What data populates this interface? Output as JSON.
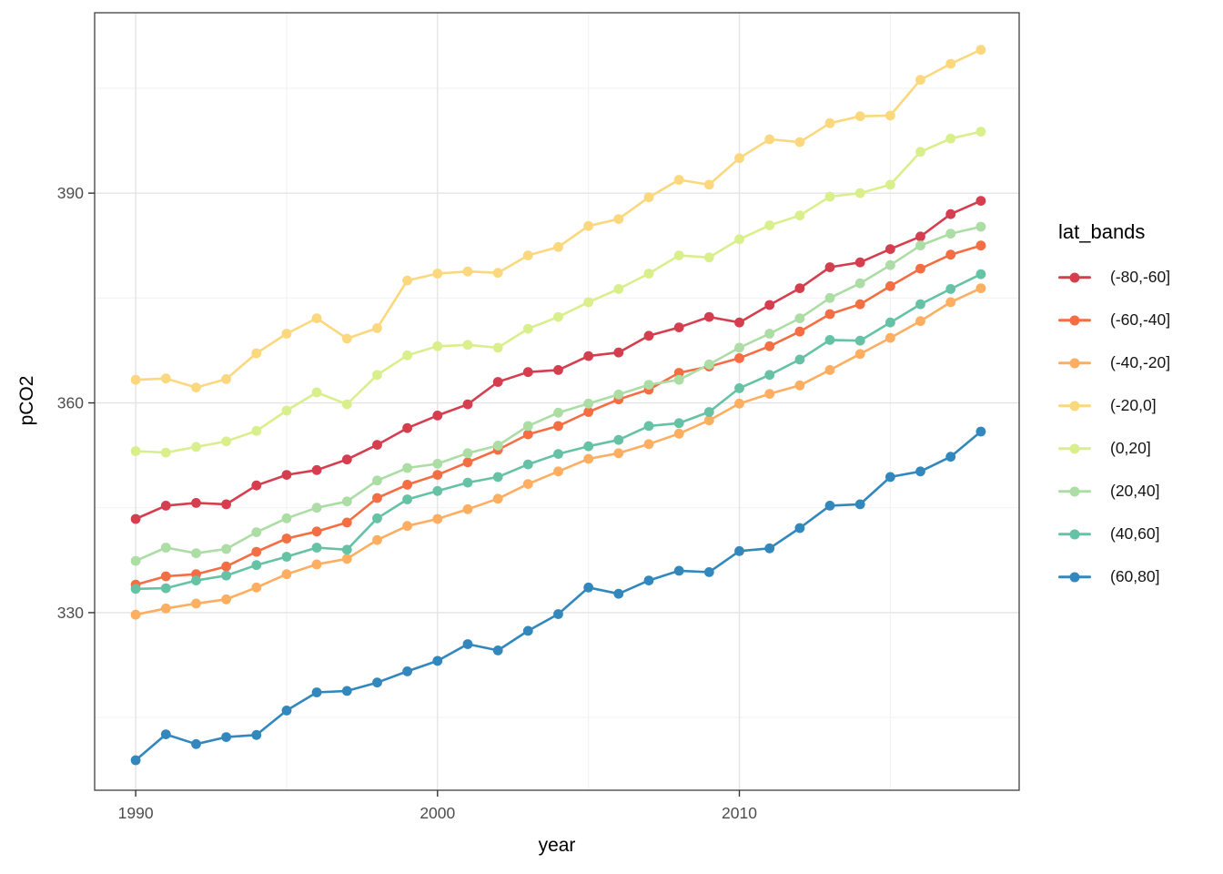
{
  "chart_data": {
    "type": "line",
    "title": "",
    "xlabel": "year",
    "ylabel": "pCO2",
    "legend_title": "lat_bands",
    "legend_position": "right",
    "grid": true,
    "x_range": [
      1988.64,
      2019.27
    ],
    "y_range": [
      304.6,
      415.8
    ],
    "x_ticks": [
      1990,
      2000,
      2010
    ],
    "x_minor_ticks": [
      1995,
      2005,
      2015
    ],
    "y_ticks": [
      330,
      360,
      390
    ],
    "y_minor_ticks": [
      315,
      345,
      375,
      405
    ],
    "x": [
      1990,
      1991,
      1992,
      1993,
      1994,
      1995,
      1996,
      1997,
      1998,
      1999,
      2000,
      2001,
      2002,
      2003,
      2004,
      2005,
      2006,
      2007,
      2008,
      2009,
      2010,
      2011,
      2012,
      2013,
      2014,
      2015,
      2016,
      2017,
      2018
    ],
    "series": [
      {
        "name": "(-80,-60]",
        "slug": "neg80-neg60",
        "color": "#D53E4F",
        "values": [
          343.4,
          345.3,
          345.7,
          345.5,
          348.2,
          349.7,
          350.4,
          351.9,
          354.0,
          356.4,
          358.2,
          359.8,
          363.0,
          364.4,
          364.7,
          366.7,
          367.2,
          369.6,
          370.8,
          372.3,
          371.5,
          374.0,
          376.4,
          379.4,
          380.1,
          382.0,
          383.8,
          387.0,
          388.9
        ]
      },
      {
        "name": "(-60,-40]",
        "slug": "neg60-neg40",
        "color": "#F46D43",
        "values": [
          334.0,
          335.2,
          335.5,
          336.6,
          338.7,
          340.6,
          341.6,
          342.9,
          346.4,
          348.3,
          349.7,
          351.5,
          353.3,
          355.5,
          356.7,
          358.7,
          360.5,
          361.9,
          364.3,
          365.2,
          366.4,
          368.1,
          370.2,
          372.7,
          374.1,
          376.7,
          379.2,
          381.2,
          382.5
        ]
      },
      {
        "name": "(-40,-20]",
        "slug": "neg40-neg20",
        "color": "#FDAE61",
        "values": [
          329.7,
          330.6,
          331.3,
          331.9,
          333.6,
          335.5,
          336.9,
          337.7,
          340.4,
          342.4,
          343.4,
          344.8,
          346.3,
          348.4,
          350.2,
          352.0,
          352.8,
          354.1,
          355.6,
          357.5,
          359.9,
          361.3,
          362.5,
          364.7,
          367.0,
          369.3,
          371.7,
          374.4,
          376.4
        ]
      },
      {
        "name": "(-20,0]",
        "slug": "neg20-0",
        "color": "#FBD87D",
        "values": [
          363.3,
          363.5,
          362.2,
          363.4,
          367.1,
          369.9,
          372.1,
          369.2,
          370.7,
          377.5,
          378.5,
          378.8,
          378.6,
          381.1,
          382.3,
          385.3,
          386.3,
          389.4,
          391.9,
          391.2,
          395.0,
          397.7,
          397.3,
          400.0,
          401.0,
          401.1,
          406.2,
          408.5,
          410.5
        ]
      },
      {
        "name": "(0,20]",
        "slug": "0-20",
        "color": "#D9EF8B",
        "values": [
          353.1,
          352.9,
          353.7,
          354.5,
          356.0,
          358.9,
          361.5,
          359.8,
          364.0,
          366.8,
          368.1,
          368.3,
          367.9,
          370.6,
          372.3,
          374.4,
          376.3,
          378.5,
          381.1,
          380.8,
          383.4,
          385.4,
          386.8,
          389.5,
          390.0,
          391.2,
          395.9,
          397.8,
          398.8
        ]
      },
      {
        "name": "(20,40]",
        "slug": "20-40",
        "color": "#ABDDA4",
        "values": [
          337.4,
          339.3,
          338.5,
          339.1,
          341.5,
          343.5,
          345.0,
          345.9,
          348.9,
          350.7,
          351.3,
          352.8,
          353.9,
          356.7,
          358.6,
          359.9,
          361.2,
          362.6,
          363.3,
          365.5,
          367.9,
          369.9,
          372.1,
          375.0,
          377.1,
          379.7,
          382.5,
          384.2,
          385.2
        ]
      },
      {
        "name": "(40,60]",
        "slug": "40-60",
        "color": "#66C2A5",
        "values": [
          333.4,
          333.5,
          334.6,
          335.3,
          336.8,
          338.0,
          339.3,
          339.0,
          343.5,
          346.2,
          347.4,
          348.6,
          349.4,
          351.2,
          352.7,
          353.8,
          354.7,
          356.7,
          357.1,
          358.7,
          362.1,
          364.0,
          366.2,
          369.0,
          368.9,
          371.5,
          374.1,
          376.3,
          378.4
        ]
      },
      {
        "name": "(60,80]",
        "slug": "60-80",
        "color": "#3288BD",
        "values": [
          308.9,
          312.6,
          311.2,
          312.2,
          312.5,
          316.0,
          318.6,
          318.8,
          320.0,
          321.6,
          323.1,
          325.5,
          324.6,
          327.4,
          329.8,
          333.6,
          332.7,
          334.6,
          336.0,
          335.8,
          338.8,
          339.2,
          342.1,
          345.3,
          345.5,
          349.4,
          350.2,
          352.3,
          355.9
        ]
      }
    ],
    "style": {
      "grid_major_color": "#E4E4E4",
      "grid_minor_color": "#F2F2F2",
      "panel_border_color": "#3F3F3F",
      "tick_color": "#333333",
      "tick_label_color": "#4D4D4D"
    }
  }
}
